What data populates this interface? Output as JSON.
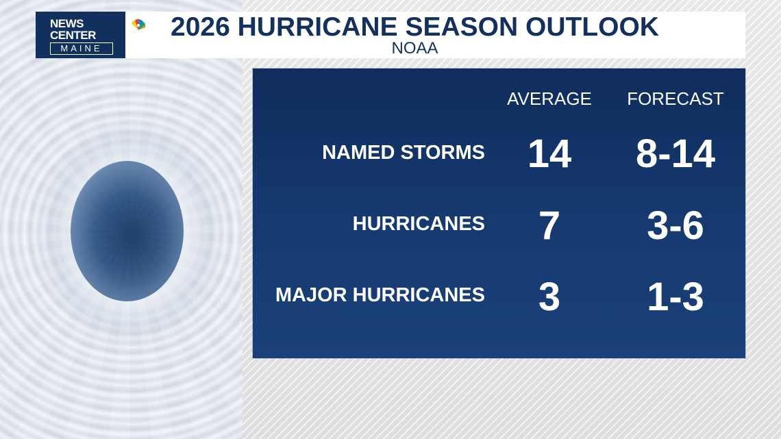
{
  "brand": {
    "line1": "NEWS",
    "line2": "CENTER",
    "line3": "MAINE",
    "logo_bg": "#12305e"
  },
  "header": {
    "title": "2026 HURRICANE SEASON OUTLOOK",
    "subtitle": "NOAA",
    "text_color": "#14305c"
  },
  "table": {
    "columns": [
      "AVERAGE",
      "FORECAST"
    ],
    "rows": [
      {
        "label": "NAMED STORMS",
        "average": "14",
        "forecast": "8-14"
      },
      {
        "label": "HURRICANES",
        "average": "7",
        "forecast": "3-6"
      },
      {
        "label": "MAJOR HURRICANES",
        "average": "3",
        "forecast": "1-3"
      }
    ],
    "panel_color": "#163a70"
  },
  "icons": {
    "network_logo": "peacock-icon",
    "background_image": "hurricane-satellite-image"
  }
}
